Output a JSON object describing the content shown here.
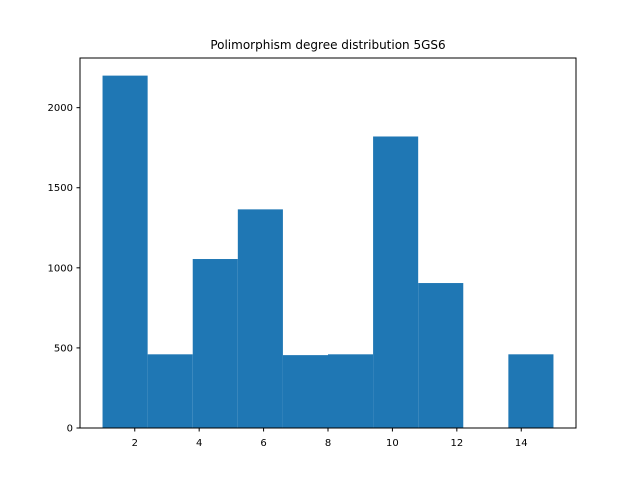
{
  "chart_data": {
    "type": "bar",
    "subtype": "histogram",
    "title": "Polimorphism degree distribution 5GS6",
    "xlabel": "",
    "ylabel": "",
    "bin_edges": [
      1,
      2.4,
      3.8,
      5.2,
      6.6,
      8.0,
      9.4,
      10.8,
      12.2,
      13.6,
      15.0
    ],
    "values": [
      2200,
      460,
      1055,
      1365,
      455,
      460,
      1820,
      905,
      0,
      460
    ],
    "xlim": [
      0.3,
      15.7
    ],
    "ylim": [
      0,
      2310
    ],
    "xticks": [
      2,
      4,
      6,
      8,
      10,
      12,
      14
    ],
    "yticks": [
      0,
      500,
      1000,
      1500,
      2000
    ],
    "grid": false,
    "bar_color": "#1f77b4"
  }
}
